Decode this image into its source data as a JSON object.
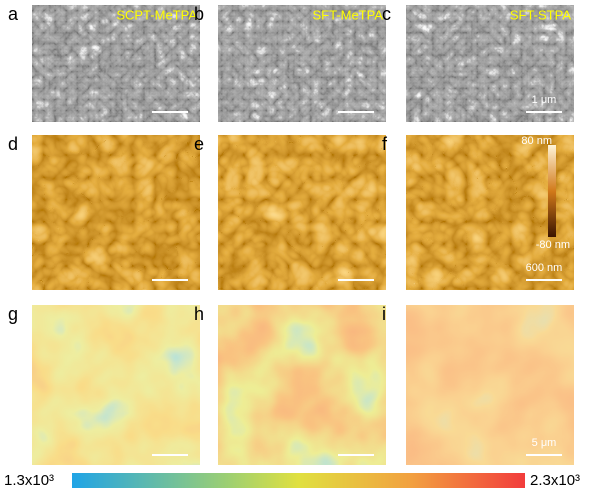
{
  "panels": [
    {
      "label": "a",
      "sample": "SCPT-MeTPA"
    },
    {
      "label": "b",
      "sample": "SFT-MeTPA"
    },
    {
      "label": "c",
      "sample": "SFT-STPA",
      "scale_bar": "1 μm"
    },
    {
      "label": "d"
    },
    {
      "label": "e"
    },
    {
      "label": "f",
      "height_max": "80 nm",
      "height_min": "-80 nm",
      "scale_bar": "600 nm"
    },
    {
      "label": "g"
    },
    {
      "label": "h"
    },
    {
      "label": "i",
      "scale_bar": "5 μm"
    }
  ],
  "colorbar": {
    "min": "1.3x10³",
    "max": "2.3x10³"
  }
}
